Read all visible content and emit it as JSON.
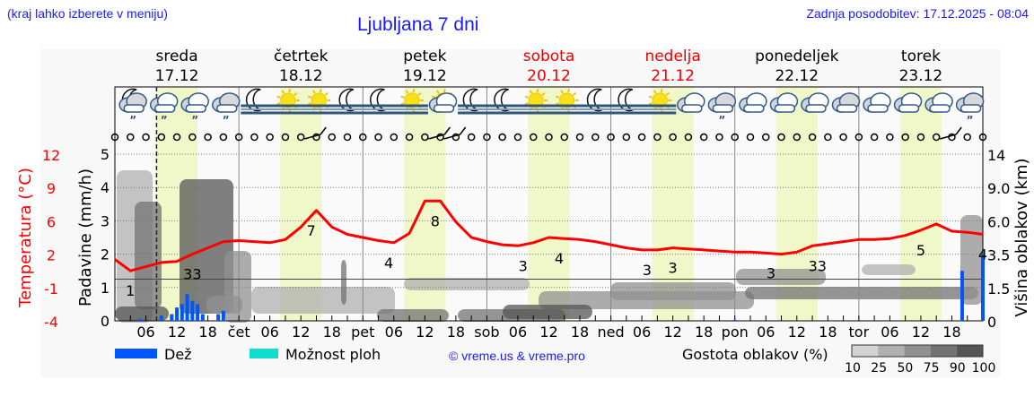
{
  "header": {
    "hint": "(kraj lahko izberete v meniju)",
    "title": "Ljubljana 7 dni",
    "updated": "Zadnja posodobitev: 17.12.2025 - 08:04"
  },
  "days": [
    {
      "name": "sreda",
      "date": "17.12",
      "weekend": false,
      "abbr": ""
    },
    {
      "name": "četrtek",
      "date": "18.12",
      "weekend": false,
      "abbr": "čet"
    },
    {
      "name": "petek",
      "date": "19.12",
      "weekend": false,
      "abbr": "pet"
    },
    {
      "name": "sobota",
      "date": "20.12",
      "weekend": true,
      "abbr": "sob"
    },
    {
      "name": "nedelja",
      "date": "21.12",
      "weekend": true,
      "abbr": "ned"
    },
    {
      "name": "ponedeljek",
      "date": "22.12",
      "weekend": false,
      "abbr": "pon"
    },
    {
      "name": "torek",
      "date": "23.12",
      "weekend": false,
      "abbr": "tor"
    }
  ],
  "icons": [
    "moon-cloud-rain",
    "cloud-rain",
    "cloud-rain",
    "cloud-rain",
    "moon-fog",
    "sun-fog",
    "sun-fog",
    "moon-fog",
    "moon-fog",
    "sun-fog",
    "sun-cloud",
    "moon-fog",
    "moon-fog",
    "sun-fog",
    "sun-fog",
    "moon-fog",
    "moon-fog",
    "sun-fog",
    "cloud",
    "cloud-rain",
    "cloud",
    "cloud",
    "cloud",
    "cloud",
    "cloud",
    "cloud",
    "cloud",
    "cloud-rain"
  ],
  "chart_data": {
    "type": "line",
    "x_start": "17.12.2025 00:00",
    "x_end": "24.12.2025 00:00",
    "now": "17.12.2025 08:04",
    "hour_ticks": [
      "06",
      "12",
      "18"
    ],
    "temperature": {
      "axis_label": "Temperatura (°C)",
      "ticks": [
        "12",
        "9",
        "6",
        "2",
        "-1",
        "-4"
      ],
      "ylim": [
        -4,
        12
      ],
      "color": "#ff0000",
      "step_hours": 3,
      "values": [
        1.9,
        0.8,
        1.2,
        1.6,
        1.7,
        2.4,
        3.0,
        3.6,
        3.7,
        3.6,
        3.5,
        3.8,
        5.0,
        6.6,
        5.0,
        4.3,
        4.0,
        3.7,
        3.5,
        4.4,
        7.5,
        7.5,
        5.5,
        4.0,
        3.6,
        3.3,
        3.2,
        3.5,
        4.0,
        3.9,
        3.8,
        3.6,
        3.3,
        3.0,
        2.8,
        2.8,
        3.0,
        2.9,
        2.8,
        2.7,
        2.6,
        2.6,
        2.5,
        2.4,
        2.6,
        3.2,
        3.4,
        3.6,
        3.8,
        3.8,
        3.9,
        4.2,
        4.7,
        5.3,
        4.6,
        4.5,
        4.3
      ]
    },
    "annotations": [
      {
        "time": "17.12 03:00",
        "text": "1"
      },
      {
        "time": "17.12 15:00",
        "text": "33"
      },
      {
        "time": "18.12 14:00",
        "text": "7"
      },
      {
        "time": "19.12 05:00",
        "text": "4"
      },
      {
        "time": "19.12 14:00",
        "text": "8"
      },
      {
        "time": "20.12 07:00",
        "text": "3"
      },
      {
        "time": "20.12 14:00",
        "text": "4"
      },
      {
        "time": "21.12 07:00",
        "text": "3"
      },
      {
        "time": "21.12 12:00",
        "text": "3"
      },
      {
        "time": "22.12 07:00",
        "text": "3"
      },
      {
        "time": "22.12 16:00",
        "text": "33"
      },
      {
        "time": "23.12 12:00",
        "text": "5"
      },
      {
        "time": "24.12 00:00",
        "text": "4"
      }
    ],
    "precipitation": {
      "axis_label": "Padavine (mm/h)",
      "ticks": [
        "0",
        "1",
        "2",
        "3",
        "4",
        "5"
      ],
      "ylim": [
        0,
        5
      ],
      "color": "#0055ff",
      "bars": [
        {
          "time": "17.12 05:00",
          "mm": 0.05
        },
        {
          "time": "17.12 09:00",
          "mm": 0.15
        },
        {
          "time": "17.12 11:00",
          "mm": 0.2
        },
        {
          "time": "17.12 12:00",
          "mm": 0.4
        },
        {
          "time": "17.12 13:00",
          "mm": 0.5
        },
        {
          "time": "17.12 14:00",
          "mm": 0.8
        },
        {
          "time": "17.12 15:00",
          "mm": 0.6
        },
        {
          "time": "17.12 16:00",
          "mm": 0.5
        },
        {
          "time": "17.12 17:00",
          "mm": 0.2
        },
        {
          "time": "17.12 20:00",
          "mm": 0.2
        },
        {
          "time": "17.12 21:00",
          "mm": 0.3
        },
        {
          "time": "22.12 00:00",
          "mm": 0.03
        },
        {
          "time": "23.12 20:00",
          "mm": 1.5
        },
        {
          "time": "24.12 00:00",
          "mm": 2.0
        }
      ]
    },
    "cloud_height": {
      "axis_label": "Višina oblakov (km)",
      "ticks": [
        "0",
        "1.5",
        "3.5",
        "6.0",
        "9.0",
        "14"
      ]
    },
    "wind_barbs": [
      "18.12 12:00",
      "19.12 12:00",
      "19.12 15:00",
      "23.12 15:00"
    ],
    "grid": true
  },
  "legend": {
    "rain": "Dež",
    "rain_color": "#0055ff",
    "showers": "Možnost ploh",
    "showers_color": "#11ddcc",
    "credit": "© vreme.us & vreme.pro",
    "cloud_density": "Gostota oblakov (%)",
    "cloud_levels": [
      "10",
      "25",
      "50",
      "75",
      "90",
      "100"
    ],
    "cloud_colors": [
      "#d3d3d3",
      "#b0b0b0",
      "#919191",
      "#737373",
      "#555555"
    ]
  }
}
